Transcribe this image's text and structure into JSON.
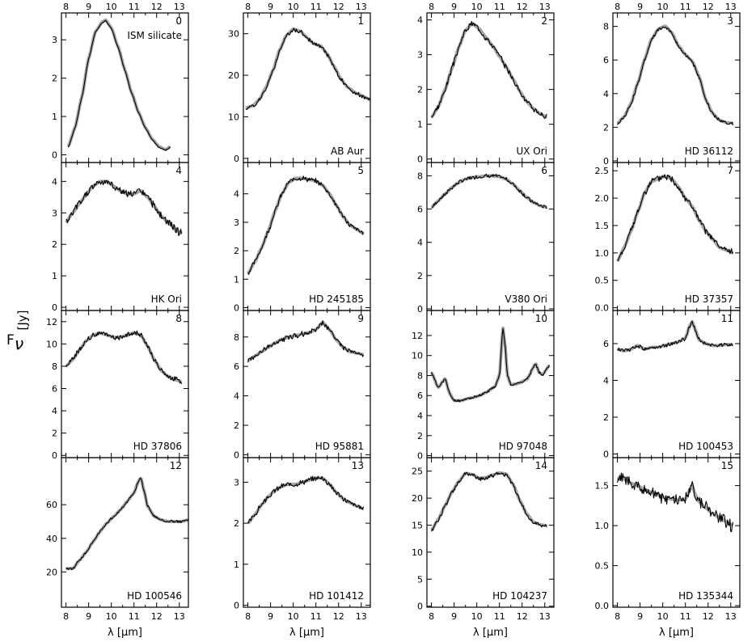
{
  "figure": {
    "ylabel_main": "F",
    "ylabel_sub": "ν",
    "ylabel_unit": "[Jy]",
    "xlabel": "λ [μm]"
  },
  "style": {
    "model_color": "#a6a6a6",
    "data_color": "#000000",
    "frame_color": "#000000"
  },
  "chart_data": [
    {
      "type": "line",
      "index": "0",
      "label": "ISM silicate",
      "xlim": [
        7.8,
        13.4
      ],
      "ylim": [
        -0.2,
        3.7
      ],
      "yticks": [
        0,
        1,
        2,
        3
      ],
      "ytick_labels": [
        "0",
        "1",
        "2",
        "3"
      ],
      "x": [
        8.1,
        8.4,
        8.7,
        9.0,
        9.3,
        9.6,
        9.75,
        10.0,
        10.3,
        10.6,
        10.9,
        11.2,
        11.5,
        11.8,
        12.1,
        12.4,
        12.6
      ],
      "y": [
        0.2,
        0.7,
        1.5,
        2.5,
        3.2,
        3.45,
        3.5,
        3.3,
        2.8,
        2.2,
        1.6,
        1.1,
        0.7,
        0.4,
        0.2,
        0.12,
        0.2
      ],
      "noise": 0.01,
      "seed": 1,
      "model_offset": 0.05
    },
    {
      "type": "line",
      "index": "1",
      "label": "AB Aur",
      "xlim": [
        7.8,
        13.4
      ],
      "ylim": [
        -1,
        35
      ],
      "yticks": [
        0,
        10,
        20,
        30
      ],
      "ytick_labels": [
        "0",
        "10",
        "20",
        "30"
      ],
      "x": [
        7.9,
        8.2,
        8.5,
        8.8,
        9.1,
        9.4,
        9.7,
        10.0,
        10.3,
        10.6,
        10.9,
        11.2,
        11.5,
        11.8,
        12.1,
        12.4,
        12.8,
        13.2,
        13.4
      ],
      "y": [
        12,
        12.5,
        14,
        17,
        21,
        26,
        29.5,
        31,
        30.5,
        29,
        27.5,
        27,
        25,
        22,
        19,
        17,
        15.5,
        14.5,
        14
      ],
      "noise": 0.4,
      "seed": 2,
      "model_offset": 0.4
    },
    {
      "type": "line",
      "index": "2",
      "label": "UX Ori",
      "xlim": [
        7.8,
        13.4
      ],
      "ylim": [
        -0.1,
        4.2
      ],
      "yticks": [
        0,
        1,
        2,
        3,
        4
      ],
      "ytick_labels": [
        "0",
        "1",
        "2",
        "3",
        "4"
      ],
      "x": [
        8.0,
        8.3,
        8.6,
        8.9,
        9.2,
        9.5,
        9.8,
        10.1,
        10.4,
        10.7,
        11.0,
        11.3,
        11.6,
        11.9,
        12.2,
        12.5,
        12.8,
        13.1
      ],
      "y": [
        1.2,
        1.5,
        2.0,
        2.6,
        3.2,
        3.7,
        3.9,
        3.75,
        3.5,
        3.25,
        2.95,
        2.65,
        2.3,
        1.95,
        1.65,
        1.45,
        1.3,
        1.2
      ],
      "noise": 0.07,
      "seed": 3,
      "model_offset": 0
    },
    {
      "type": "line",
      "index": "3",
      "label": "HD 36112",
      "xlim": [
        7.8,
        13.4
      ],
      "ylim": [
        -0.1,
        8.8
      ],
      "yticks": [
        0,
        2,
        4,
        6,
        8
      ],
      "ytick_labels": [
        "0",
        "2",
        "4",
        "6",
        "8"
      ],
      "x": [
        8.0,
        8.3,
        8.6,
        8.9,
        9.2,
        9.5,
        9.8,
        10.1,
        10.4,
        10.7,
        11.0,
        11.3,
        11.6,
        11.9,
        12.2,
        12.5,
        12.8,
        13.1
      ],
      "y": [
        2.2,
        2.6,
        3.4,
        4.6,
        6.0,
        7.2,
        7.8,
        8.0,
        7.6,
        6.8,
        6.3,
        5.9,
        5.0,
        3.6,
        2.8,
        2.4,
        2.25,
        2.2
      ],
      "noise": 0.08,
      "seed": 4,
      "model_offset": 0.1
    },
    {
      "type": "line",
      "index": "4",
      "label": "HK Ori",
      "xlim": [
        7.8,
        13.4
      ],
      "ylim": [
        -0.1,
        4.6
      ],
      "yticks": [
        0,
        1,
        2,
        3,
        4
      ],
      "ytick_labels": [
        "0",
        "1",
        "2",
        "3",
        "4"
      ],
      "x": [
        8.0,
        8.3,
        8.6,
        8.9,
        9.2,
        9.5,
        9.8,
        10.1,
        10.4,
        10.7,
        11.0,
        11.3,
        11.6,
        11.9,
        12.2,
        12.5,
        12.8,
        13.1
      ],
      "y": [
        2.7,
        3.0,
        3.3,
        3.6,
        3.85,
        4.0,
        4.0,
        3.85,
        3.7,
        3.6,
        3.6,
        3.7,
        3.5,
        3.2,
        2.9,
        2.7,
        2.5,
        2.35
      ],
      "noise": 0.1,
      "seed": 5,
      "model_offset": 0
    },
    {
      "type": "line",
      "index": "5",
      "label": "HD 245185",
      "xlim": [
        7.8,
        13.4
      ],
      "ylim": [
        -0.1,
        5.1
      ],
      "yticks": [
        0,
        1,
        2,
        3,
        4
      ],
      "ytick_labels": [
        "0",
        "1",
        "2",
        "3",
        "4"
      ],
      "x": [
        8.0,
        8.3,
        8.6,
        8.9,
        9.2,
        9.5,
        9.8,
        10.1,
        10.4,
        10.7,
        11.0,
        11.3,
        11.6,
        11.9,
        12.2,
        12.5,
        12.8,
        13.1
      ],
      "y": [
        1.2,
        1.6,
        2.1,
        2.7,
        3.4,
        4.0,
        4.4,
        4.55,
        4.55,
        4.5,
        4.45,
        4.3,
        4.0,
        3.6,
        3.2,
        2.9,
        2.75,
        2.6
      ],
      "noise": 0.07,
      "seed": 6,
      "model_offset": 0
    },
    {
      "type": "line",
      "index": "6",
      "label": "V380 Ori",
      "xlim": [
        7.8,
        13.4
      ],
      "ylim": [
        -0.1,
        8.8
      ],
      "yticks": [
        0,
        2,
        4,
        6,
        8
      ],
      "ytick_labels": [
        "0",
        "2",
        "4",
        "6",
        "8"
      ],
      "x": [
        8.0,
        8.3,
        8.6,
        8.9,
        9.2,
        9.5,
        9.8,
        10.1,
        10.4,
        10.7,
        11.0,
        11.3,
        11.6,
        11.9,
        12.2,
        12.5,
        12.8,
        13.1
      ],
      "y": [
        6.1,
        6.5,
        6.9,
        7.3,
        7.6,
        7.8,
        7.9,
        7.95,
        8.0,
        8.0,
        7.95,
        7.8,
        7.5,
        7.1,
        6.7,
        6.4,
        6.2,
        6.1
      ],
      "noise": 0.09,
      "seed": 7,
      "model_offset": 0
    },
    {
      "type": "line",
      "index": "7",
      "label": "HD 37357",
      "xlim": [
        7.8,
        13.4
      ],
      "ylim": [
        -0.05,
        2.65
      ],
      "yticks": [
        0,
        0.5,
        1,
        1.5,
        2,
        2.5
      ],
      "ytick_labels": [
        "0.0",
        "0.5",
        "1.0",
        "1.5",
        "2.0",
        "2.5"
      ],
      "x": [
        8.0,
        8.3,
        8.6,
        8.9,
        9.2,
        9.5,
        9.8,
        10.1,
        10.4,
        10.7,
        11.0,
        11.3,
        11.6,
        11.9,
        12.2,
        12.5,
        12.8,
        13.1
      ],
      "y": [
        0.85,
        1.1,
        1.4,
        1.75,
        2.1,
        2.3,
        2.35,
        2.4,
        2.35,
        2.2,
        2.0,
        1.85,
        1.6,
        1.4,
        1.25,
        1.1,
        1.05,
        1.0
      ],
      "noise": 0.05,
      "seed": 8,
      "model_offset": 0
    },
    {
      "type": "line",
      "index": "8",
      "label": "HD 37806",
      "xlim": [
        7.8,
        13.4
      ],
      "ylim": [
        -0.2,
        13
      ],
      "yticks": [
        0,
        2,
        4,
        6,
        8,
        10,
        12
      ],
      "ytick_labels": [
        "0",
        "2",
        "4",
        "6",
        "8",
        "10",
        "12"
      ],
      "x": [
        8.0,
        8.3,
        8.6,
        8.9,
        9.2,
        9.5,
        9.8,
        10.1,
        10.4,
        10.7,
        11.0,
        11.3,
        11.6,
        11.9,
        12.2,
        12.5,
        12.8,
        13.1
      ],
      "y": [
        8.0,
        8.6,
        9.5,
        10.3,
        10.8,
        11.0,
        10.8,
        10.6,
        10.6,
        10.8,
        11.0,
        10.8,
        9.8,
        8.6,
        7.6,
        7.1,
        6.8,
        6.6
      ],
      "noise": 0.2,
      "seed": 9,
      "model_offset": 0
    },
    {
      "type": "line",
      "index": "9",
      "label": "HD 95881",
      "xlim": [
        7.8,
        13.4
      ],
      "ylim": [
        -0.2,
        9.8
      ],
      "yticks": [
        0,
        2,
        4,
        6,
        8
      ],
      "ytick_labels": [
        "0",
        "2",
        "4",
        "6",
        "8"
      ],
      "x": [
        8.0,
        8.3,
        8.6,
        8.9,
        9.2,
        9.5,
        9.8,
        10.1,
        10.4,
        10.7,
        11.0,
        11.3,
        11.6,
        11.9,
        12.2,
        12.5,
        12.8,
        13.1
      ],
      "y": [
        6.4,
        6.7,
        7.0,
        7.3,
        7.6,
        7.85,
        8.0,
        8.1,
        8.2,
        8.3,
        8.5,
        9.0,
        8.5,
        7.8,
        7.3,
        7.0,
        6.9,
        6.8
      ],
      "noise": 0.15,
      "seed": 10,
      "model_offset": 0
    },
    {
      "type": "line",
      "index": "10",
      "label": "HD 97048",
      "xlim": [
        7.8,
        13.4
      ],
      "ylim": [
        -0.2,
        14.5
      ],
      "yticks": [
        0,
        2,
        4,
        6,
        8,
        10,
        12
      ],
      "ytick_labels": [
        "0",
        "2",
        "4",
        "6",
        "8",
        "10",
        "12"
      ],
      "x": [
        8.0,
        8.3,
        8.6,
        8.8,
        9.0,
        9.3,
        9.6,
        10.0,
        10.4,
        10.8,
        11.0,
        11.15,
        11.25,
        11.35,
        11.5,
        11.8,
        12.2,
        12.6,
        12.75,
        12.9,
        13.2
      ],
      "y": [
        8.3,
        6.8,
        7.7,
        6.2,
        5.5,
        5.5,
        5.7,
        5.9,
        6.3,
        6.9,
        8.0,
        12.8,
        11.0,
        8.0,
        7.1,
        7.2,
        7.6,
        9.2,
        8.3,
        8.1,
        9.0
      ],
      "noise": 0.1,
      "seed": 11,
      "model_offset": 0
    },
    {
      "type": "line",
      "index": "11",
      "label": "HD 100453",
      "xlim": [
        7.8,
        13.4
      ],
      "ylim": [
        -0.2,
        7.8
      ],
      "yticks": [
        0,
        2,
        4,
        6
      ],
      "ytick_labels": [
        "0",
        "2",
        "4",
        "6"
      ],
      "x": [
        8.0,
        8.3,
        8.6,
        8.9,
        9.2,
        9.5,
        9.8,
        10.1,
        10.4,
        10.7,
        11.0,
        11.2,
        11.3,
        11.45,
        11.6,
        11.9,
        12.2,
        12.5,
        12.8,
        13.1
      ],
      "y": [
        5.7,
        5.6,
        5.7,
        5.9,
        5.7,
        5.8,
        5.8,
        5.9,
        6.0,
        6.1,
        6.3,
        7.0,
        7.2,
        6.7,
        6.2,
        6.0,
        5.9,
        5.9,
        5.95,
        5.95
      ],
      "noise": 0.09,
      "seed": 12,
      "model_offset": 0
    },
    {
      "type": "line",
      "index": "12",
      "label": "HD 100546",
      "xlim": [
        7.8,
        13.4
      ],
      "ylim": [
        -1,
        88
      ],
      "yticks": [
        20,
        40,
        60
      ],
      "ytick_labels": [
        "20",
        "40",
        "60"
      ],
      "x": [
        8.0,
        8.3,
        8.6,
        8.9,
        9.2,
        9.5,
        9.8,
        10.1,
        10.4,
        10.7,
        11.0,
        11.2,
        11.3,
        11.45,
        11.6,
        11.9,
        12.2,
        12.5,
        12.8,
        13.1,
        13.4
      ],
      "y": [
        22,
        22,
        27,
        32,
        38,
        44,
        49,
        53,
        57,
        62,
        67,
        74,
        76,
        68,
        59,
        53,
        51,
        50,
        50,
        50,
        51
      ],
      "noise": 0.6,
      "seed": 13,
      "model_offset": 0
    },
    {
      "type": "line",
      "index": "13",
      "label": "HD 101412",
      "xlim": [
        7.8,
        13.4
      ],
      "ylim": [
        -0.05,
        3.6
      ],
      "yticks": [
        0,
        1,
        2,
        3
      ],
      "ytick_labels": [
        "0",
        "1",
        "2",
        "3"
      ],
      "x": [
        8.0,
        8.3,
        8.6,
        8.9,
        9.2,
        9.5,
        9.8,
        10.1,
        10.4,
        10.7,
        11.0,
        11.3,
        11.6,
        11.9,
        12.2,
        12.5,
        12.8,
        13.1
      ],
      "y": [
        2.0,
        2.2,
        2.45,
        2.65,
        2.8,
        2.9,
        2.95,
        2.95,
        3.0,
        3.05,
        3.1,
        3.1,
        2.95,
        2.75,
        2.6,
        2.5,
        2.42,
        2.35
      ],
      "noise": 0.05,
      "seed": 14,
      "model_offset": 0
    },
    {
      "type": "line",
      "index": "14",
      "label": "HD 104237",
      "xlim": [
        7.8,
        13.4
      ],
      "ylim": [
        -0.2,
        27.5
      ],
      "yticks": [
        0,
        5,
        10,
        15,
        20,
        25
      ],
      "ytick_labels": [
        "0",
        "5",
        "10",
        "15",
        "20",
        "25"
      ],
      "x": [
        8.0,
        8.3,
        8.6,
        8.9,
        9.2,
        9.5,
        9.8,
        10.1,
        10.4,
        10.7,
        11.0,
        11.3,
        11.6,
        11.9,
        12.2,
        12.5,
        12.8,
        13.1
      ],
      "y": [
        14,
        16,
        18.5,
        21,
        23,
        24.5,
        24.3,
        23.6,
        23.7,
        24.2,
        24.6,
        24.4,
        22.5,
        19.5,
        17,
        15.5,
        15,
        14.8
      ],
      "noise": 0.3,
      "seed": 15,
      "model_offset": 0.3
    },
    {
      "type": "line",
      "index": "15",
      "label": "HD 135344",
      "xlim": [
        7.8,
        13.4
      ],
      "ylim": [
        -0.02,
        1.85
      ],
      "yticks": [
        0,
        0.5,
        1,
        1.5
      ],
      "ytick_labels": [
        "0.0",
        "0.5",
        "1.0",
        "1.5"
      ],
      "x": [
        8.0,
        8.3,
        8.6,
        8.9,
        9.2,
        9.5,
        9.8,
        10.1,
        10.4,
        10.7,
        11.0,
        11.2,
        11.3,
        11.45,
        11.6,
        11.9,
        12.2,
        12.5,
        12.8,
        13.1
      ],
      "y": [
        1.6,
        1.58,
        1.53,
        1.5,
        1.45,
        1.42,
        1.38,
        1.35,
        1.33,
        1.32,
        1.33,
        1.45,
        1.5,
        1.38,
        1.3,
        1.22,
        1.15,
        1.1,
        1.05,
        1.0
      ],
      "noise": 0.06,
      "seed": 16,
      "model_offset": 0
    }
  ],
  "shared_axis": {
    "xticks": [
      8,
      9,
      10,
      11,
      12,
      13
    ],
    "xtick_labels": [
      "8",
      "9",
      "10",
      "11",
      "12",
      "13"
    ]
  }
}
